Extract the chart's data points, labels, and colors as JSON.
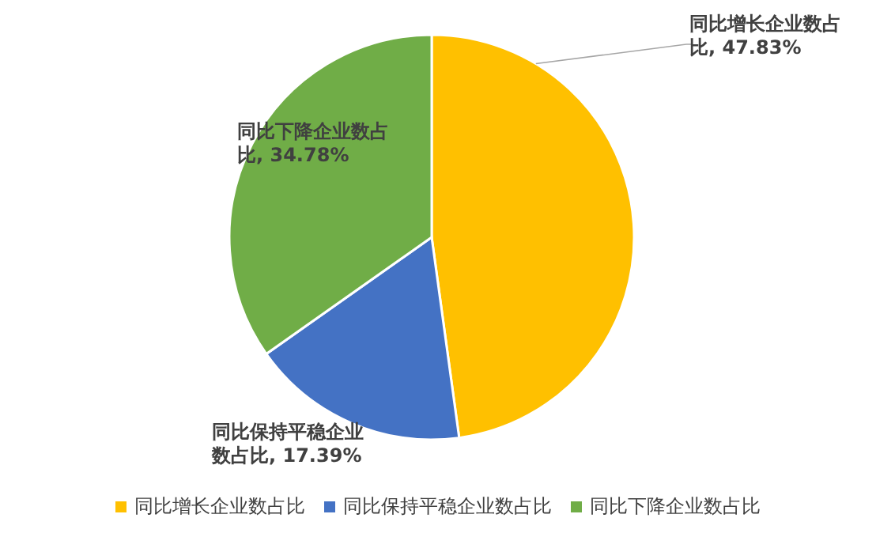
{
  "chart_data": {
    "type": "pie",
    "categories": [
      "同比增长企业数占比",
      "同比保持平稳企业数占比",
      "同比下降企业数占比"
    ],
    "values": [
      47.83,
      17.39,
      34.78
    ],
    "colors": [
      "#ffc000",
      "#4472c4",
      "#70ad47"
    ],
    "value_labels": [
      ", 47.83%",
      ", 17.39%",
      ", 34.78%"
    ],
    "legend": "bottom"
  }
}
